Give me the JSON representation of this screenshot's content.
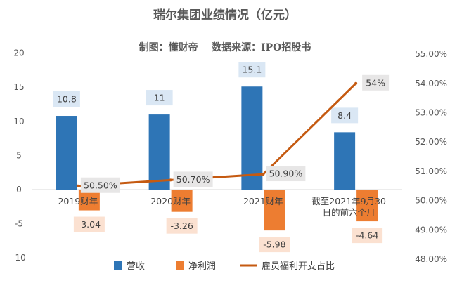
{
  "chart_data": {
    "type": "bar",
    "title": "瑞尔集团业绩情况（亿元）",
    "subtitle": "制图：懂财帝    数据来源：IPO招股书",
    "categories": [
      "2019财年",
      "2020财年",
      "2021财年",
      "截至2021年9月30日的前六个月"
    ],
    "series": [
      {
        "name": "营收",
        "type": "bar",
        "axis": "left",
        "color": "#2E75B6",
        "values": [
          10.8,
          11,
          15.1,
          8.4
        ],
        "labels": [
          "10.8",
          "11",
          "15.1",
          "8.4"
        ]
      },
      {
        "name": "净利润",
        "type": "bar",
        "axis": "left",
        "color": "#ED7D31",
        "values": [
          -3.04,
          -3.26,
          -5.98,
          -4.64
        ],
        "labels": [
          "-3.04",
          "-3.26",
          "-5.98",
          "-4.64"
        ]
      },
      {
        "name": "雇员福利开支占比",
        "type": "line",
        "axis": "right",
        "color": "#C55A11",
        "values": [
          50.5,
          50.7,
          50.9,
          54.0
        ],
        "labels": [
          "50.50%",
          "50.70%",
          "50.90%",
          "54%"
        ]
      }
    ],
    "ylim_left": [
      -10,
      20
    ],
    "yticks_left": [
      "20",
      "15",
      "10",
      "5",
      "0",
      "-5",
      "-10"
    ],
    "ylim_right": [
      48,
      55
    ],
    "yticks_right": [
      "55.00%",
      "54.00%",
      "53.00%",
      "52.00%",
      "51.00%",
      "50.00%",
      "49.00%",
      "48.00%"
    ],
    "grid": false,
    "legend_position": "bottom"
  }
}
